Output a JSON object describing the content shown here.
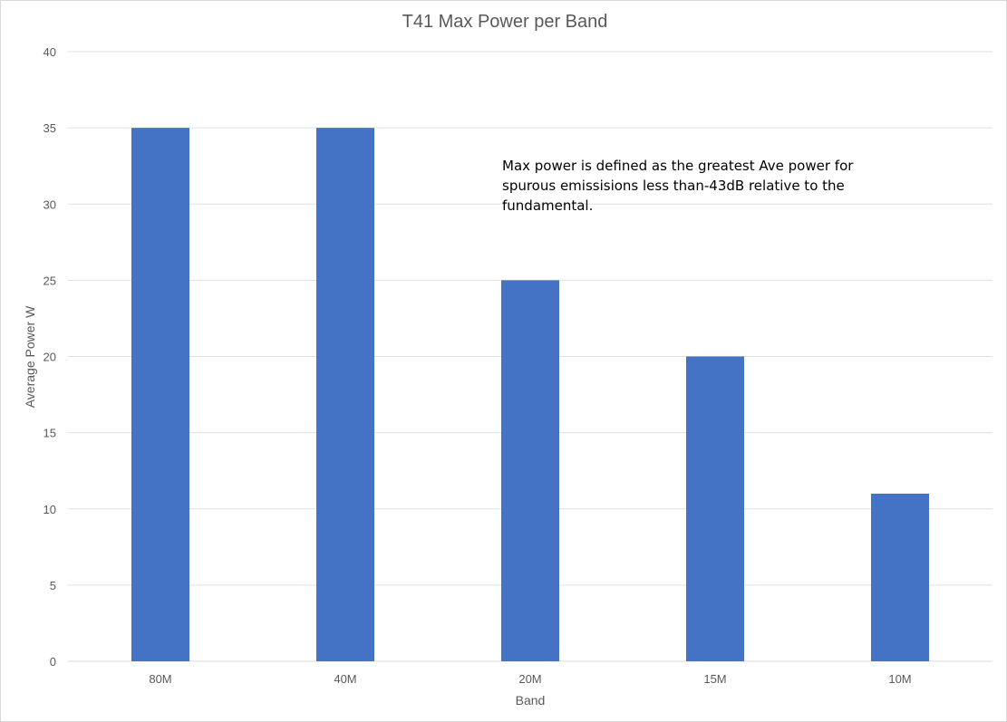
{
  "chart_data": {
    "type": "bar",
    "title": "T41 Max Power per Band",
    "xlabel": "Band",
    "ylabel": "Average Power W",
    "categories": [
      "80M",
      "40M",
      "20M",
      "15M",
      "10M"
    ],
    "series": [
      {
        "values": [
          35,
          35,
          25,
          20,
          11
        ]
      }
    ],
    "ylim": [
      0,
      40
    ],
    "yticks": [
      0,
      5,
      10,
      15,
      20,
      25,
      30,
      35,
      40
    ],
    "grid": true,
    "legend": "none",
    "bar_color": "#4472c4",
    "annotation": "Max power is defined as the greatest Ave power for\nspurous emissisions less than-43dB relative to the\nfundamental."
  }
}
